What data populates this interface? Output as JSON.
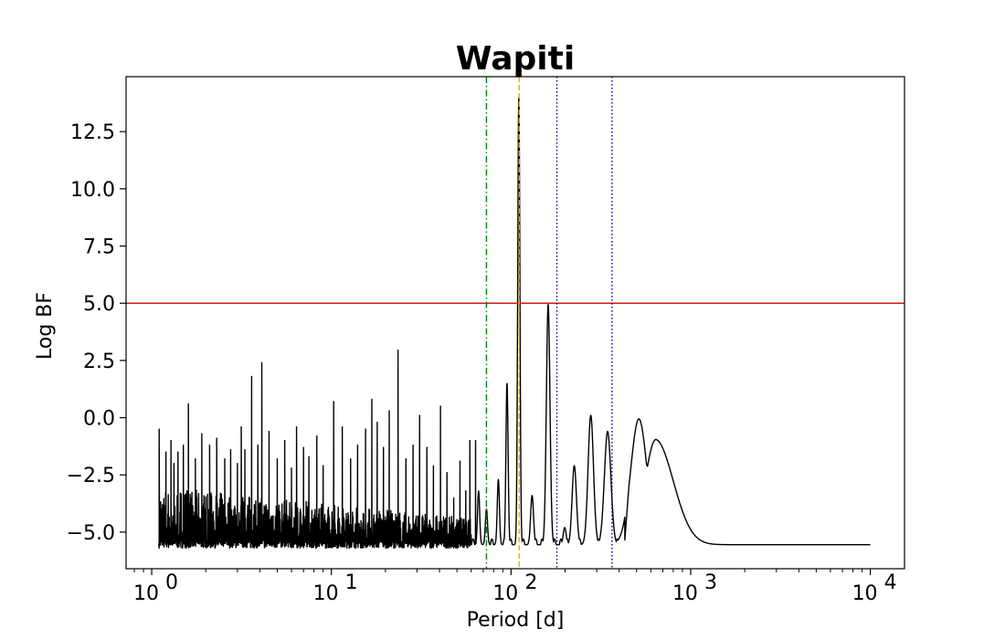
{
  "chart_data": {
    "type": "line",
    "title": "Wapiti",
    "xlabel": "Period [d]",
    "ylabel": "Log BF",
    "xscale": "log",
    "xlim": [
      0.72,
      15500
    ],
    "ylim": [
      -6.6,
      14.9
    ],
    "grid": false,
    "x_ticks": [
      {
        "value": 1,
        "base": "10",
        "exp": "0"
      },
      {
        "value": 10,
        "base": "10",
        "exp": "1"
      },
      {
        "value": 100,
        "base": "10",
        "exp": "2"
      },
      {
        "value": 1000,
        "base": "10",
        "exp": "3"
      },
      {
        "value": 10000,
        "base": "10",
        "exp": "4"
      }
    ],
    "y_ticks": [
      {
        "value": -5.0,
        "label": "−5.0"
      },
      {
        "value": -2.5,
        "label": "−2.5"
      },
      {
        "value": 0.0,
        "label": "0.0"
      },
      {
        "value": 2.5,
        "label": "2.5"
      },
      {
        "value": 5.0,
        "label": "5.0"
      },
      {
        "value": 7.5,
        "label": "7.5"
      },
      {
        "value": 10.0,
        "label": "10.0"
      },
      {
        "value": 12.5,
        "label": "12.5"
      }
    ],
    "threshold": {
      "y": 5.0,
      "color": "#d62728"
    },
    "vlines": [
      {
        "x": 73,
        "color": "#008000",
        "style": "dashdot"
      },
      {
        "x": 111,
        "color": "#ffa500",
        "style": "dashed"
      },
      {
        "x": 180,
        "color": "#00008b",
        "style": "dotted"
      },
      {
        "x": 365,
        "color": "#00008b",
        "style": "dotted"
      }
    ],
    "series": [
      {
        "name": "Log BF",
        "color": "#000000",
        "baseline": -5.6,
        "noise_range": {
          "x_start": 1.1,
          "x_end": 60,
          "min": -5.7,
          "max": -3.0,
          "seed": 7
        },
        "noise_spikes": [
          {
            "x": 1.1,
            "y": -0.5
          },
          {
            "x": 1.2,
            "y": -1.5
          },
          {
            "x": 1.28,
            "y": -1.0
          },
          {
            "x": 1.33,
            "y": -2.0
          },
          {
            "x": 1.4,
            "y": -1.5
          },
          {
            "x": 1.5,
            "y": -1.2
          },
          {
            "x": 1.6,
            "y": 0.6
          },
          {
            "x": 1.75,
            "y": -1.8
          },
          {
            "x": 1.9,
            "y": -0.7
          },
          {
            "x": 2.1,
            "y": -1.2
          },
          {
            "x": 2.3,
            "y": -0.9
          },
          {
            "x": 2.55,
            "y": -1.8
          },
          {
            "x": 2.75,
            "y": -1.4
          },
          {
            "x": 3.0,
            "y": -2.0
          },
          {
            "x": 3.15,
            "y": -0.4
          },
          {
            "x": 3.3,
            "y": -1.4
          },
          {
            "x": 3.6,
            "y": 1.8
          },
          {
            "x": 3.9,
            "y": -1.2
          },
          {
            "x": 4.1,
            "y": 2.4
          },
          {
            "x": 4.5,
            "y": -0.6
          },
          {
            "x": 5.0,
            "y": -1.8
          },
          {
            "x": 5.5,
            "y": -1.0
          },
          {
            "x": 6.0,
            "y": -2.2
          },
          {
            "x": 6.4,
            "y": -0.4
          },
          {
            "x": 7.0,
            "y": -1.3
          },
          {
            "x": 7.5,
            "y": -1.7
          },
          {
            "x": 8.3,
            "y": -0.8
          },
          {
            "x": 9.0,
            "y": -2.1
          },
          {
            "x": 10.3,
            "y": 0.7
          },
          {
            "x": 11.5,
            "y": -0.4
          },
          {
            "x": 12.8,
            "y": -1.8
          },
          {
            "x": 14.0,
            "y": -1.2
          },
          {
            "x": 15.5,
            "y": -0.5
          },
          {
            "x": 16.8,
            "y": 0.8
          },
          {
            "x": 18.0,
            "y": -0.2
          },
          {
            "x": 19.5,
            "y": -1.3
          },
          {
            "x": 21.0,
            "y": 0.3
          },
          {
            "x": 23.5,
            "y": 2.95
          },
          {
            "x": 26.0,
            "y": -1.8
          },
          {
            "x": 28.5,
            "y": -1.2
          },
          {
            "x": 31.0,
            "y": 0.1
          },
          {
            "x": 34.0,
            "y": -1.3
          },
          {
            "x": 37.0,
            "y": -2.1
          },
          {
            "x": 40.5,
            "y": 0.5
          },
          {
            "x": 44.0,
            "y": -2.4
          },
          {
            "x": 48.0,
            "y": -3.5
          },
          {
            "x": 52.0,
            "y": -1.9
          },
          {
            "x": 56.0,
            "y": -3.2
          },
          {
            "x": 59.0,
            "y": -1.0
          },
          {
            "x": 63.5,
            "y": -1.0
          }
        ],
        "peaks": [
          {
            "x": 66,
            "y": -3.2,
            "width": 0.006
          },
          {
            "x": 73,
            "y": -4.0,
            "width": 0.006
          },
          {
            "x": 85,
            "y": -2.7,
            "width": 0.006
          },
          {
            "x": 95,
            "y": 1.5,
            "width": 0.006
          },
          {
            "x": 110.5,
            "y": 14.0,
            "width": 0.006
          },
          {
            "x": 131,
            "y": -3.4,
            "width": 0.008
          },
          {
            "x": 161,
            "y": 4.95,
            "width": 0.01
          },
          {
            "x": 199,
            "y": -4.8,
            "width": 0.008
          },
          {
            "x": 225,
            "y": -2.1,
            "width": 0.012
          },
          {
            "x": 278,
            "y": 0.1,
            "width": 0.015
          },
          {
            "x": 345,
            "y": -0.6,
            "width": 0.018
          },
          {
            "x": 515,
            "y": -0.05,
            "width": 0.045
          },
          {
            "x": 640,
            "y": -0.95,
            "width": 0.06
          }
        ],
        "tail": [
          {
            "x": 430,
            "y": -5.35
          },
          {
            "x": 560,
            "y": -0.7
          },
          {
            "x": 800,
            "y": -2.8
          },
          {
            "x": 1000,
            "y": -4.4
          },
          {
            "x": 1300,
            "y": -5.3
          },
          {
            "x": 2000,
            "y": -5.5
          },
          {
            "x": 10000,
            "y": -5.55
          }
        ]
      }
    ]
  }
}
